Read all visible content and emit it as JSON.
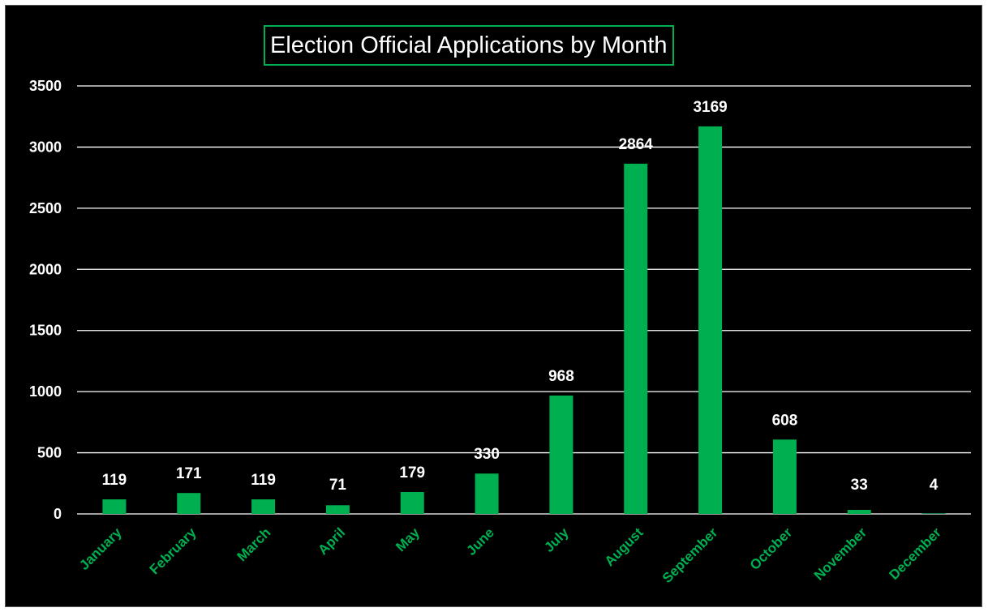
{
  "chart_data": {
    "type": "bar",
    "title": "Election Official Applications by Month",
    "xlabel": "",
    "ylabel": "",
    "categories": [
      "January",
      "February",
      "March",
      "April",
      "May",
      "June",
      "July",
      "August",
      "September",
      "October",
      "November",
      "December"
    ],
    "values": [
      119,
      171,
      119,
      71,
      179,
      330,
      968,
      2864,
      3169,
      608,
      33,
      4
    ],
    "ylim": [
      0,
      3500
    ],
    "yticks": [
      0,
      500,
      1000,
      1500,
      2000,
      2500,
      3000,
      3500
    ],
    "grid": true,
    "legend": "none",
    "colors": {
      "background": "#000000",
      "bar": "#00b050",
      "category_label": "#00b050",
      "text": "#ffffff",
      "gridline": "#ffffff"
    }
  }
}
